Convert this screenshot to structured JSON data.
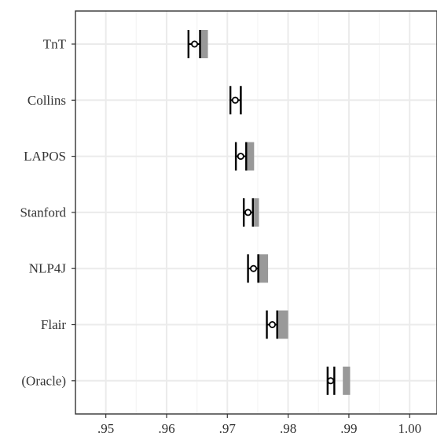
{
  "chart_data": {
    "type": "interval",
    "title": "",
    "xlabel": "",
    "ylabel": "",
    "xlim": [
      0.945,
      1.0045
    ],
    "x_ticks": [
      0.95,
      0.96,
      0.97,
      0.98,
      0.99,
      1.0
    ],
    "x_tick_labels": [
      ".95",
      ".96",
      ".97",
      ".98",
      ".99",
      "1.00"
    ],
    "grid": true,
    "categories": [
      "TnT",
      "Collins",
      "LAPOS",
      "Stanford",
      "NLP4J",
      "Flair",
      "(Oracle)"
    ],
    "series": [
      {
        "point": [
          0.9646,
          0.9713,
          0.9722,
          0.9734,
          0.9743,
          0.9774,
          0.987
        ],
        "ci_low": [
          0.9636,
          0.9705,
          0.9714,
          0.9727,
          0.9734,
          0.9765,
          0.9865
        ],
        "ci_high": [
          0.9655,
          0.9722,
          0.9731,
          0.9742,
          0.9751,
          0.9782,
          0.9876
        ]
      },
      {
        "range_low": [
          0.9655,
          0.9722,
          0.973,
          0.9742,
          0.9749,
          0.9782,
          0.989
        ],
        "range_high": [
          0.9668,
          0.9724,
          0.9744,
          0.9752,
          0.9767,
          0.98,
          0.9902
        ]
      }
    ]
  },
  "colors": {
    "box_fill": "#999999",
    "interval": "#000000",
    "grid_major": "#ebebeb",
    "grid_minor": "#f4f4f4",
    "panel_border": "#333333"
  }
}
